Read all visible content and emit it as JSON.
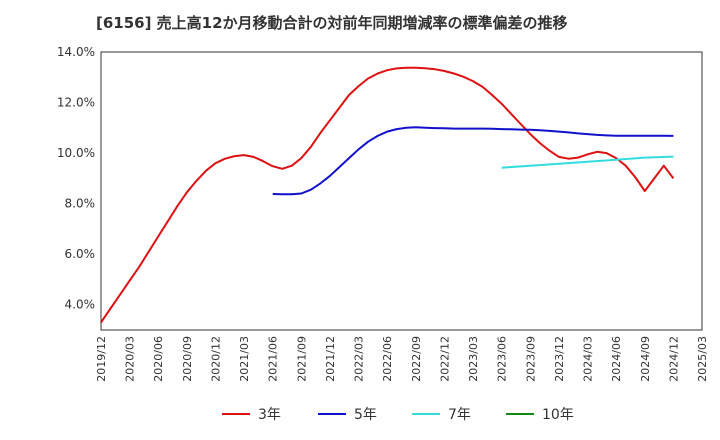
{
  "chart_data": {
    "type": "line",
    "title": "[6156]  売上高12か月移動合計の対前年同期増減率の標準偏差の推移",
    "xlabel": "",
    "ylabel": "",
    "ylim": [
      3.0,
      14.0
    ],
    "yticks": [
      4.0,
      6.0,
      8.0,
      10.0,
      12.0,
      14.0
    ],
    "ytick_labels": [
      "4.0%",
      "6.0%",
      "8.0%",
      "10.0%",
      "12.0%",
      "14.0%"
    ],
    "xlim": [
      "2019-12",
      "2025-03"
    ],
    "xtick_labels": [
      "2019/12",
      "2020/03",
      "2020/06",
      "2020/09",
      "2020/12",
      "2021/03",
      "2021/06",
      "2021/09",
      "2021/12",
      "2022/03",
      "2022/06",
      "2022/09",
      "2022/12",
      "2023/03",
      "2023/06",
      "2023/09",
      "2023/12",
      "2024/03",
      "2024/06",
      "2024/09",
      "2024/12",
      "2025/03"
    ],
    "grid": true,
    "legend_position": "bottom",
    "series": [
      {
        "name": "3年",
        "color": "#dd1111",
        "x": [
          "2019-12",
          "2020-01",
          "2020-02",
          "2020-03",
          "2020-04",
          "2020-05",
          "2020-06",
          "2020-07",
          "2020-08",
          "2020-09",
          "2020-10",
          "2020-11",
          "2020-12",
          "2021-01",
          "2021-02",
          "2021-03",
          "2021-04",
          "2021-05",
          "2021-06",
          "2021-07",
          "2021-08",
          "2021-09",
          "2021-10",
          "2021-11",
          "2021-12",
          "2022-01",
          "2022-02",
          "2022-03",
          "2022-04",
          "2022-05",
          "2022-06",
          "2022-07",
          "2022-08",
          "2022-09",
          "2022-10",
          "2022-11",
          "2022-12",
          "2023-01",
          "2023-02",
          "2023-03",
          "2023-04",
          "2023-05",
          "2023-06",
          "2023-07",
          "2023-08",
          "2023-09",
          "2023-10",
          "2023-11",
          "2023-12",
          "2024-01",
          "2024-02",
          "2024-03",
          "2024-04",
          "2024-05",
          "2024-06",
          "2024-07",
          "2024-08",
          "2024-09",
          "2024-10",
          "2024-11",
          "2024-12"
        ],
        "values": [
          3.3,
          3.85,
          4.4,
          4.95,
          5.5,
          6.1,
          6.7,
          7.3,
          7.9,
          8.45,
          8.9,
          9.3,
          9.6,
          9.78,
          9.88,
          9.92,
          9.85,
          9.68,
          9.48,
          9.38,
          9.5,
          9.8,
          10.25,
          10.8,
          11.3,
          11.8,
          12.3,
          12.65,
          12.95,
          13.15,
          13.28,
          13.35,
          13.38,
          13.38,
          13.36,
          13.32,
          13.25,
          13.15,
          13.02,
          12.85,
          12.62,
          12.3,
          11.95,
          11.55,
          11.15,
          10.75,
          10.4,
          10.1,
          9.85,
          9.78,
          9.82,
          9.95,
          10.05,
          10.0,
          9.8,
          9.5,
          9.05,
          8.5,
          9.0,
          9.5,
          9.0
        ],
        "note_trim": 0
      },
      {
        "name": "5年",
        "color": "#1111cc",
        "x": [
          "2021-06",
          "2021-07",
          "2021-08",
          "2021-09",
          "2021-10",
          "2021-11",
          "2021-12",
          "2022-01",
          "2022-02",
          "2022-03",
          "2022-04",
          "2022-05",
          "2022-06",
          "2022-07",
          "2022-08",
          "2022-09",
          "2022-10",
          "2022-11",
          "2022-12",
          "2023-01",
          "2023-02",
          "2023-03",
          "2023-04",
          "2023-05",
          "2023-06",
          "2023-07",
          "2023-08",
          "2023-09",
          "2023-10",
          "2023-11",
          "2023-12",
          "2024-01",
          "2024-02",
          "2024-03",
          "2024-04",
          "2024-05",
          "2024-06",
          "2024-07",
          "2024-08",
          "2024-09",
          "2024-10",
          "2024-11",
          "2024-12"
        ],
        "values": [
          8.38,
          8.37,
          8.37,
          8.4,
          8.55,
          8.8,
          9.1,
          9.45,
          9.8,
          10.15,
          10.45,
          10.68,
          10.85,
          10.95,
          11.0,
          11.02,
          11.0,
          10.99,
          10.98,
          10.97,
          10.97,
          10.97,
          10.97,
          10.96,
          10.95,
          10.94,
          10.93,
          10.92,
          10.9,
          10.88,
          10.85,
          10.82,
          10.78,
          10.75,
          10.72,
          10.7,
          10.69,
          10.69,
          10.69,
          10.69,
          10.69,
          10.69,
          10.68
        ]
      },
      {
        "name": "7年",
        "color": "#33dddd",
        "x": [
          "2023-06",
          "2023-09",
          "2023-12",
          "2024-03",
          "2024-06",
          "2024-09",
          "2024-12"
        ],
        "values": [
          9.42,
          9.5,
          9.58,
          9.66,
          9.74,
          9.82,
          9.86
        ]
      },
      {
        "name": "10年",
        "color": "#118811",
        "x": [],
        "values": []
      }
    ]
  }
}
